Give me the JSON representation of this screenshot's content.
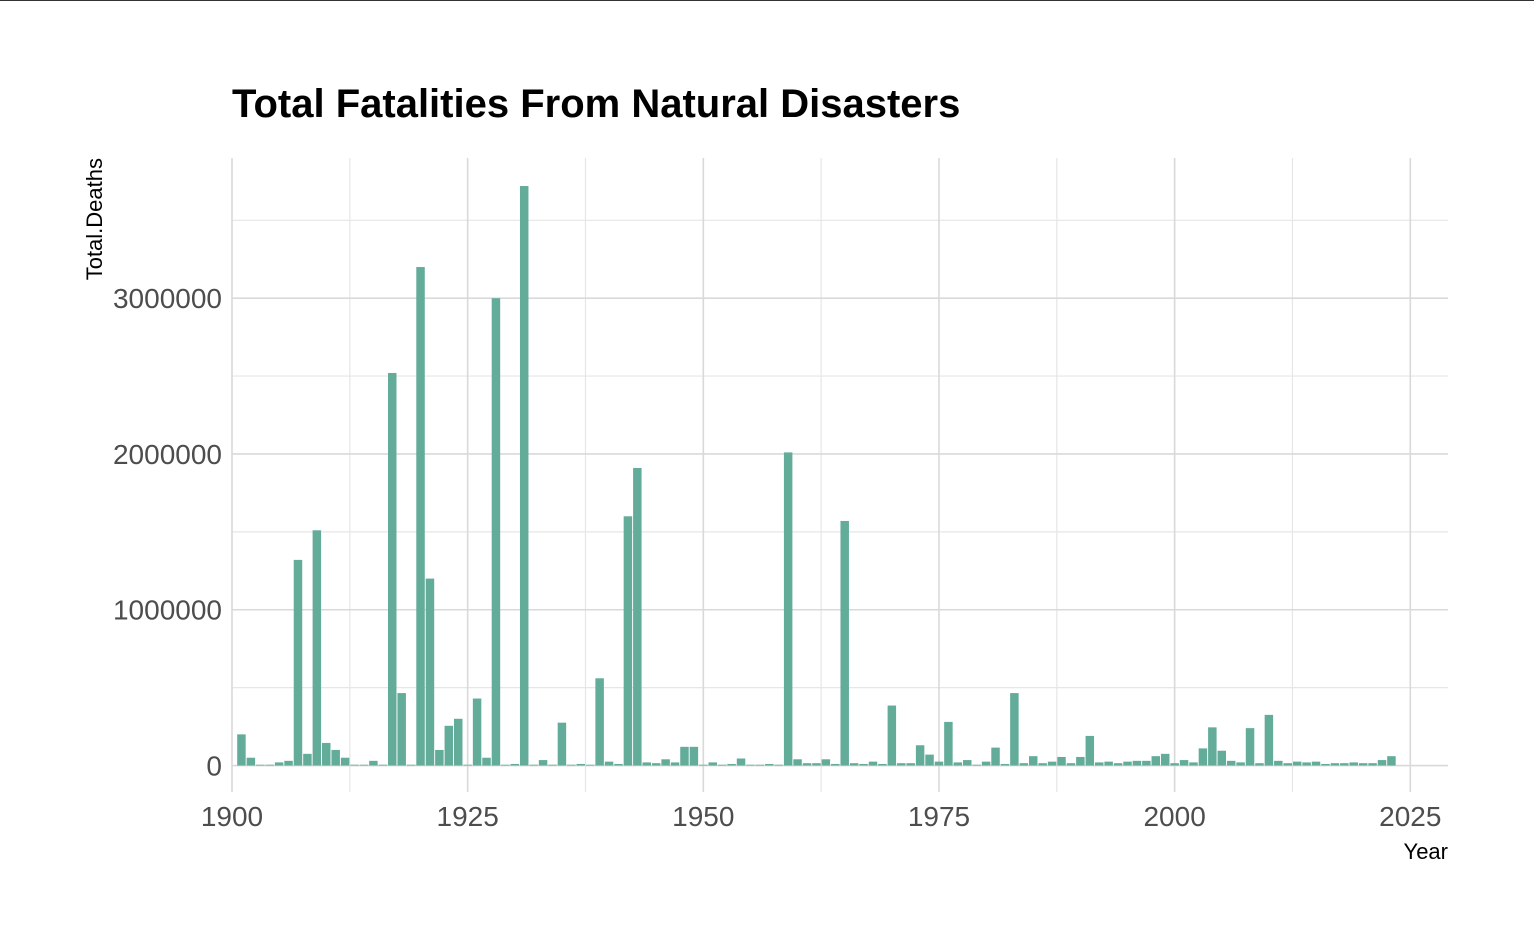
{
  "chart_data": {
    "type": "bar",
    "title": "Total Fatalities From Natural Disasters",
    "xlabel": "Year",
    "ylabel": "Total.Deaths",
    "xlim": [
      1900,
      2029
    ],
    "ylim": [
      -170000,
      3900000
    ],
    "x_ticks": [
      1900,
      1925,
      1950,
      1975,
      2000,
      2025
    ],
    "y_ticks": [
      0,
      1000000,
      2000000,
      3000000
    ],
    "x_tick_labels": [
      "1900",
      "1925",
      "1950",
      "1975",
      "2000",
      "2025"
    ],
    "y_tick_labels": [
      "0",
      "1000000",
      "2000000",
      "3000000"
    ],
    "grid": true,
    "bar_color": "#63ac9a",
    "years": [
      1901,
      1902,
      1903,
      1904,
      1905,
      1906,
      1907,
      1908,
      1909,
      1910,
      1911,
      1912,
      1913,
      1914,
      1915,
      1916,
      1917,
      1918,
      1919,
      1920,
      1921,
      1922,
      1923,
      1924,
      1925,
      1926,
      1927,
      1928,
      1929,
      1930,
      1931,
      1932,
      1933,
      1934,
      1935,
      1936,
      1937,
      1938,
      1939,
      1940,
      1941,
      1942,
      1943,
      1944,
      1945,
      1946,
      1947,
      1948,
      1949,
      1950,
      1951,
      1952,
      1953,
      1954,
      1955,
      1956,
      1957,
      1958,
      1959,
      1960,
      1961,
      1962,
      1963,
      1964,
      1965,
      1966,
      1967,
      1968,
      1969,
      1970,
      1971,
      1972,
      1973,
      1974,
      1975,
      1976,
      1977,
      1978,
      1979,
      1980,
      1981,
      1982,
      1983,
      1984,
      1985,
      1986,
      1987,
      1988,
      1989,
      1990,
      1991,
      1992,
      1993,
      1994,
      1995,
      1996,
      1997,
      1998,
      1999,
      2000,
      2001,
      2002,
      2003,
      2004,
      2005,
      2006,
      2007,
      2008,
      2009,
      2010,
      2011,
      2012,
      2013,
      2014,
      2015,
      2016,
      2017,
      2018,
      2019,
      2020,
      2021,
      2022,
      2023
    ],
    "values": [
      200000,
      50000,
      5000,
      3000,
      20000,
      30000,
      1320000,
      75000,
      1510000,
      145000,
      100000,
      50000,
      3000,
      5000,
      30000,
      3000,
      2520000,
      465000,
      2000,
      3200000,
      1200000,
      100000,
      255000,
      300000,
      2000,
      430000,
      50000,
      3000000,
      5000,
      10000,
      3720000,
      5000,
      35000,
      3000,
      275000,
      5000,
      10000,
      5000,
      560000,
      25000,
      10000,
      1600000,
      1910000,
      20000,
      15000,
      40000,
      20000,
      120000,
      120000,
      5000,
      20000,
      5000,
      10000,
      45000,
      5000,
      5000,
      10000,
      5000,
      2010000,
      40000,
      15000,
      15000,
      40000,
      10000,
      1570000,
      15000,
      10000,
      25000,
      10000,
      385000,
      15000,
      15000,
      130000,
      70000,
      25000,
      280000,
      20000,
      35000,
      5000,
      25000,
      115000,
      10000,
      465000,
      15000,
      60000,
      15000,
      25000,
      55000,
      15000,
      55000,
      190000,
      20000,
      25000,
      15000,
      25000,
      30000,
      30000,
      60000,
      75000,
      15000,
      35000,
      20000,
      110000,
      245000,
      95000,
      30000,
      20000,
      240000,
      15000,
      325000,
      30000,
      15000,
      25000,
      20000,
      25000,
      10000,
      15000,
      15000,
      20000,
      15000,
      15000,
      35000,
      60000
    ]
  }
}
